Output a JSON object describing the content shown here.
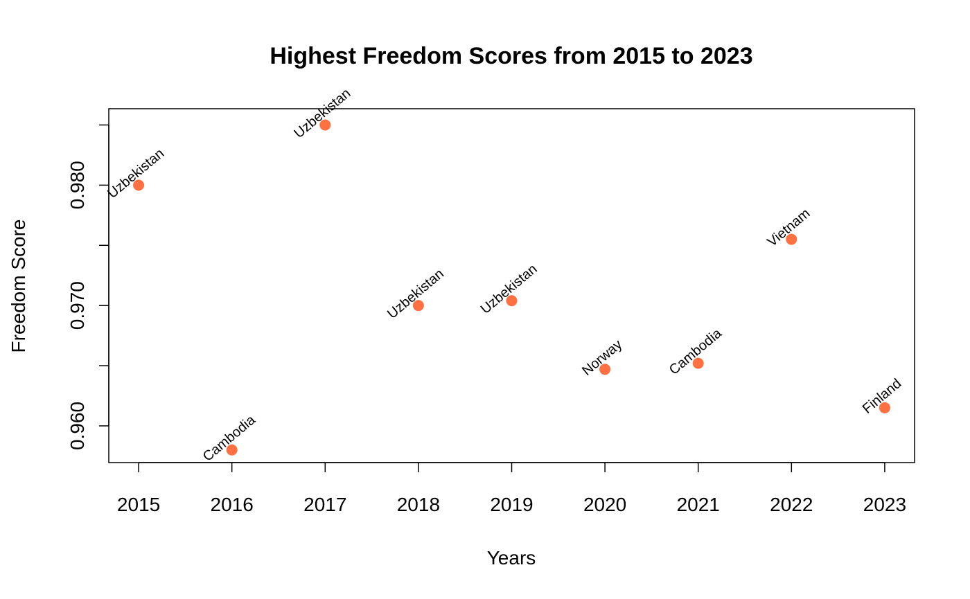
{
  "chart_data": {
    "type": "scatter",
    "title": "Highest Freedom Scores from 2015 to 2023",
    "xlabel": "Years",
    "ylabel": "Freedom Score",
    "x": [
      2015,
      2016,
      2017,
      2018,
      2019,
      2020,
      2021,
      2022,
      2023
    ],
    "y": [
      0.98,
      0.958,
      0.985,
      0.97,
      0.9704,
      0.9647,
      0.9652,
      0.9755,
      0.9615
    ],
    "point_labels": [
      "Uzbekistan",
      "Cambodia",
      "Uzbekistan",
      "Uzbekistan",
      "Uzbekistan",
      "Norway",
      "Cambodia",
      "Vietnam",
      "Finland"
    ],
    "x_ticks": [
      2015,
      2016,
      2017,
      2018,
      2019,
      2020,
      2021,
      2022,
      2023
    ],
    "y_ticks": [
      0.96,
      0.965,
      0.97,
      0.975,
      0.98,
      0.985
    ],
    "y_tick_labels": [
      "0.960",
      "",
      "0.970",
      "",
      "0.980",
      ""
    ],
    "xlim": [
      2014.68,
      2023.32
    ],
    "ylim": [
      0.95695,
      0.98635
    ],
    "grid": false,
    "point_color": "#FF7043"
  }
}
